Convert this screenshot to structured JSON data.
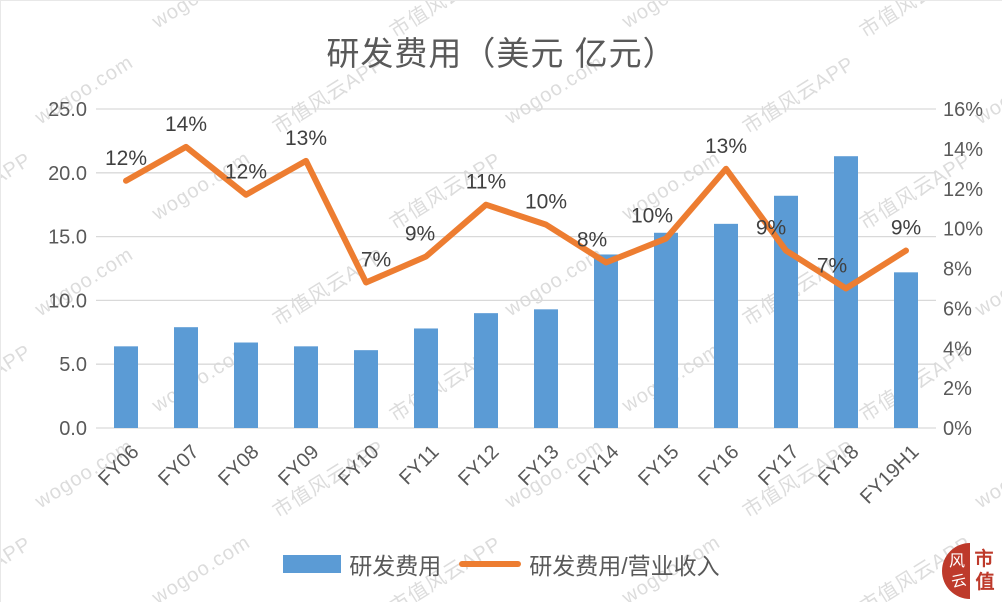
{
  "chart_data": {
    "type": "bar+line",
    "title": "研发费用（美元 亿元）",
    "categories": [
      "FY06",
      "FY07",
      "FY08",
      "FY09",
      "FY10",
      "FY11",
      "FY12",
      "FY13",
      "FY14",
      "FY15",
      "FY16",
      "FY17",
      "FY18",
      "FY19H1"
    ],
    "series": [
      {
        "name": "研发费用",
        "type": "bar",
        "axis": "left",
        "color": "#5B9BD5",
        "values": [
          6.4,
          7.9,
          6.7,
          6.4,
          6.1,
          7.8,
          9.0,
          9.3,
          13.6,
          15.3,
          16.0,
          18.2,
          21.3,
          12.2
        ]
      },
      {
        "name": "研发费用/营业收入",
        "type": "line",
        "axis": "right",
        "color": "#ED7D31",
        "values": [
          12.4,
          14.1,
          11.7,
          13.4,
          7.3,
          8.6,
          11.2,
          10.2,
          8.3,
          9.5,
          13.0,
          8.9,
          7.0,
          8.9
        ],
        "labels": [
          "12%",
          "14%",
          "12%",
          "13%",
          "7%",
          "9%",
          "11%",
          "10%",
          "8%",
          "10%",
          "13%",
          "9%",
          "7%",
          "9%"
        ]
      }
    ],
    "left_axis": {
      "min": 0,
      "max": 25,
      "ticks": [
        "0.0",
        "5.0",
        "10.0",
        "15.0",
        "20.0",
        "25.0"
      ]
    },
    "right_axis": {
      "min": 0,
      "max": 16,
      "ticks": [
        "0%",
        "2%",
        "4%",
        "6%",
        "8%",
        "10%",
        "12%",
        "14%",
        "16%"
      ]
    },
    "grid": true,
    "legend_position": "bottom",
    "colors": {
      "grid": "#D9D9D9",
      "axis_text": "#595959",
      "data_label": "#404040"
    }
  },
  "watermark": {
    "texts": [
      "市值风云APP",
      "wogoo.com"
    ]
  },
  "logo": {
    "disc_chars": [
      "风",
      "云"
    ],
    "side_chars": [
      "市",
      "值"
    ],
    "color": "#BE3A2B"
  }
}
